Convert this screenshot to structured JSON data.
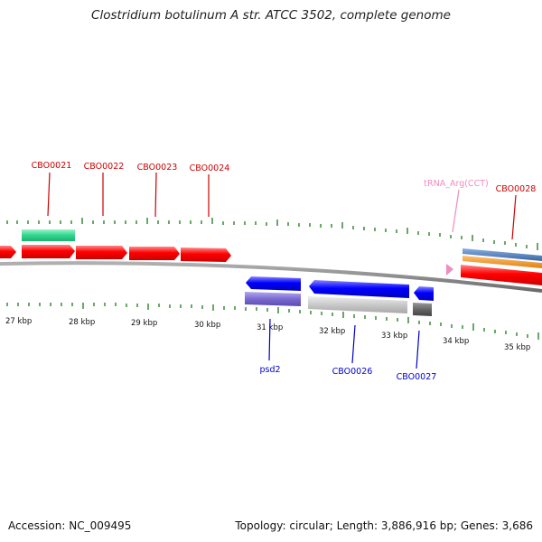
{
  "title": "Clostridium botulinum A str. ATCC 3502, complete genome",
  "footer": {
    "accession": "Accession: NC_009495",
    "stats": "Topology: circular; Length: 3,886,916 bp; Genes: 3,686"
  },
  "scale": [
    "27 kbp",
    "28 kbp",
    "29 kbp",
    "30 kbp",
    "31 kbp",
    "32 kbp",
    "33 kbp",
    "34 kbp",
    "35 kbp"
  ],
  "genes_forward": [
    {
      "label": "CBO0021",
      "color": "#cc0000"
    },
    {
      "label": "CBO0022",
      "color": "#cc0000"
    },
    {
      "label": "CBO0023",
      "color": "#cc0000"
    },
    {
      "label": "CBO0024",
      "color": "#cc0000"
    },
    {
      "label": "tRNA_Arg(CCT)",
      "color": "#f08cc0"
    },
    {
      "label": "CBO0028",
      "color": "#cc0000"
    }
  ],
  "genes_reverse": [
    {
      "label": "psd2",
      "color": "#0000cc"
    },
    {
      "label": "CBO0026",
      "color": "#0000cc"
    },
    {
      "label": "CBO0027",
      "color": "#0000cc"
    }
  ],
  "colors": {
    "cds": "#ff0000",
    "cds_reverse": "#0000ff",
    "trna": "#f08cc0",
    "backbone": "#808080",
    "ticks": "#1a7a1a",
    "green_feature": "#2ed88e",
    "orange_feature": "#f0961e",
    "steelblue_feature": "#4678b4",
    "lavender_feature": "#7a6ad0",
    "gray_feature": "#c8c8c8",
    "darkgray_feature": "#666666"
  }
}
